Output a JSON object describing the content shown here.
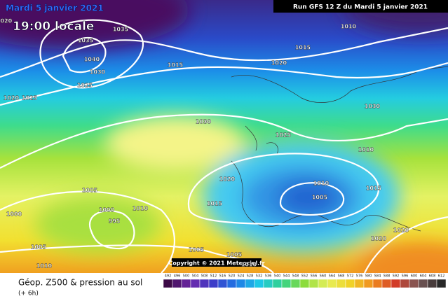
{
  "header": {
    "title": "Mardi 5 janvier 2021",
    "time": "19:00 locale",
    "run": "Run GFS 12 Z du Mardi 5 janvier 2021"
  },
  "copyright": "Copyright © 2021 Meteociel.fr",
  "isobar_labels": [
    1020,
    1035,
    1035,
    1040,
    1030,
    1025,
    1020,
    1025,
    1015,
    1015,
    1010,
    1020,
    1030,
    1030,
    1025,
    1010,
    1020,
    1010,
    1015,
    1005,
    1015,
    1005,
    1000,
    1010,
    995,
    1000,
    1020,
    1020,
    1005,
    1005,
    1005,
    1010,
    1010
  ],
  "footer": {
    "title": "Géop. Z500 & pression au sol",
    "subtitle": "(+ 6h)"
  },
  "scale": [
    492,
    496,
    500,
    504,
    508,
    512,
    516,
    520,
    524,
    528,
    532,
    536,
    540,
    544,
    548,
    552,
    556,
    560,
    564,
    568,
    572,
    576,
    580,
    584,
    588,
    592,
    596,
    600,
    604,
    608,
    612
  ]
}
